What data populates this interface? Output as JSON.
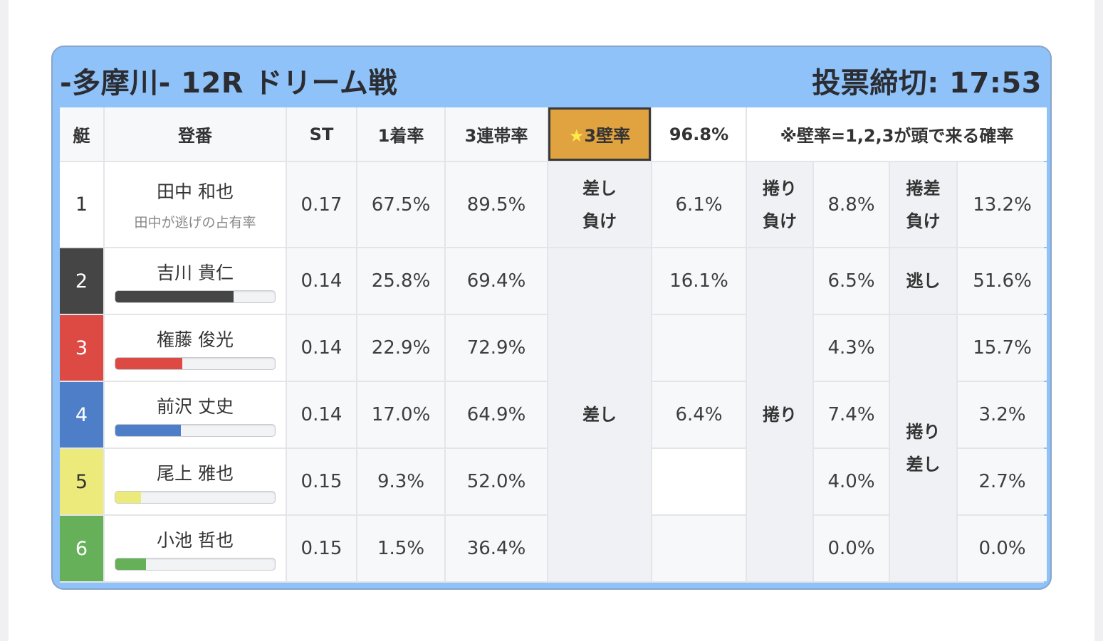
{
  "header": {
    "title": "-多摩川- 12R ドリーム戦",
    "deadline": "投票締切: 17:53"
  },
  "table": {
    "headers": {
      "boat": "艇",
      "racer": "登番",
      "st": "ST",
      "first": "1着率",
      "top3": "3連帯率",
      "wall_star": "★",
      "wall_label": "3壁率",
      "wall_value": "96.8%",
      "note": "※壁率=1,2,3が頭で来る確率"
    },
    "rows": [
      {
        "num": "1",
        "name": "田中 和也",
        "sub": "田中が逃げの占有率",
        "st": "0.17",
        "first": "67.5%",
        "top3": "89.5%",
        "color": "#ffffff",
        "bar": null
      },
      {
        "num": "2",
        "name": "吉川 貴仁",
        "st": "0.14",
        "first": "25.8%",
        "top3": "69.4%",
        "color": "#454545",
        "bar": 0.74
      },
      {
        "num": "3",
        "name": "権藤 俊光",
        "st": "0.14",
        "first": "22.9%",
        "top3": "72.9%",
        "color": "#dd4a44",
        "bar": 0.42
      },
      {
        "num": "4",
        "name": "前沢 丈史",
        "st": "0.14",
        "first": "17.0%",
        "top3": "64.9%",
        "color": "#4f7ec8",
        "bar": 0.41
      },
      {
        "num": "5",
        "name": "尾上 雅也",
        "st": "0.15",
        "first": "9.3%",
        "top3": "52.0%",
        "color": "#ecea7a",
        "bar": 0.16
      },
      {
        "num": "6",
        "name": "小池 哲也",
        "st": "0.15",
        "first": "1.5%",
        "top3": "36.4%",
        "color": "#67b05a",
        "bar": 0.19
      }
    ],
    "kimarite": {
      "sashimake": "差し\n負け",
      "sashi": "差し",
      "makurimake": "捲り\n負け",
      "makuri": "捲り",
      "makurisashimake": "捲差\n負け",
      "nige": "逃し",
      "makurisashi": "捲り\n差し"
    },
    "values": {
      "sashi_col": [
        "6.1%",
        "16.1%",
        "",
        "6.4%",
        "",
        ""
      ],
      "makuri_col": [
        "8.8%",
        "6.5%",
        "4.3%",
        "7.4%",
        "4.0%",
        "0.0%"
      ],
      "msashi_col": [
        "13.2%",
        "51.6%",
        "15.7%",
        "3.2%",
        "2.7%",
        "0.0%"
      ]
    }
  }
}
